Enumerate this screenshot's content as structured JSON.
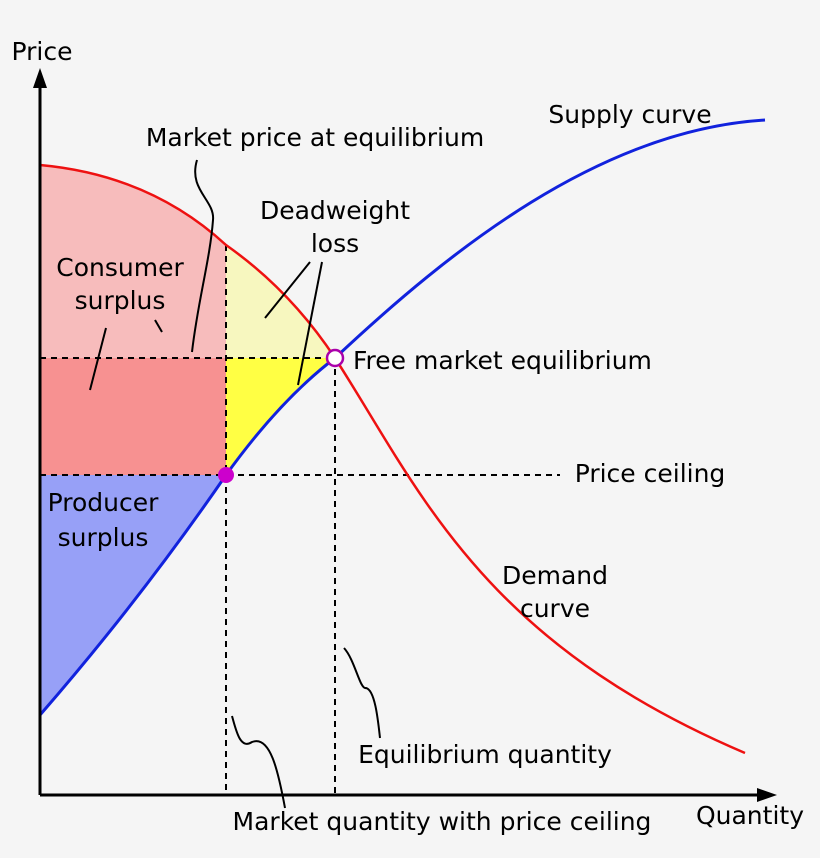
{
  "axes": {
    "y_label": "Price",
    "x_label": "Quantity"
  },
  "labels": {
    "supply_curve": "Supply curve",
    "market_price": "Market price at equilibrium",
    "deadweight_loss": [
      "Deadweight",
      "loss"
    ],
    "consumer_surplus": [
      "Consumer",
      "surplus"
    ],
    "free_market_equilibrium": "Free market equilibrium",
    "price_ceiling": "Price ceiling",
    "producer_surplus": [
      "Producer",
      "surplus"
    ],
    "demand_curve": [
      "Demand",
      "curve"
    ],
    "equilibrium_quantity": "Equilibrium quantity",
    "market_quantity": "Market quantity with price ceiling"
  }
}
